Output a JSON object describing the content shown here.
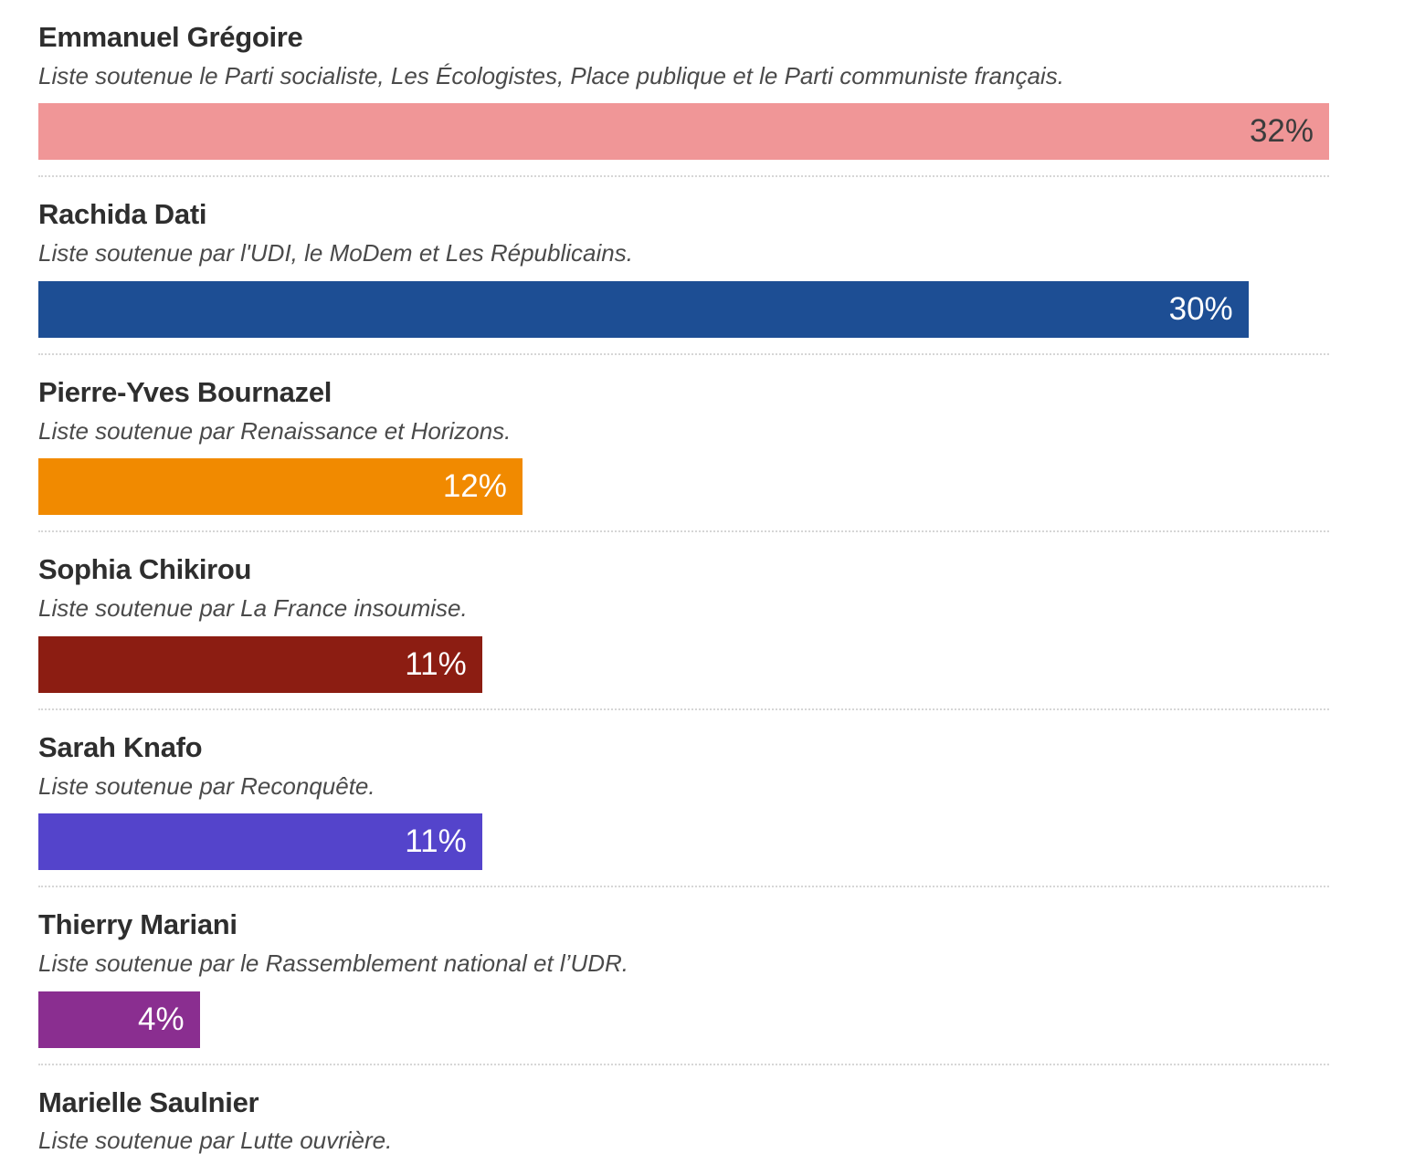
{
  "chart_data": {
    "type": "bar",
    "orientation": "horizontal",
    "unit": "%",
    "xlim": [
      0,
      32
    ],
    "grid": false,
    "legend": false,
    "title": "",
    "categories": [
      "Emmanuel Grégoire",
      "Rachida Dati",
      "Pierre-Yves Bournazel",
      "Sophia Chikirou",
      "Sarah Knafo",
      "Thierry Mariani",
      "Marielle Saulnier"
    ],
    "values": [
      32,
      30,
      12,
      11,
      11,
      4,
      null
    ],
    "bar_labels": [
      "32%",
      "30%",
      "12%",
      "11%",
      "11%",
      "4%",
      null
    ],
    "bar_colors": [
      "#f09697",
      "#1d4e94",
      "#f18a00",
      "#8c1d12",
      "#5444cb",
      "#8a2e90",
      null
    ],
    "annotations": [
      "Liste soutenue le Parti socialiste, Les Écologistes, Place publique et le Parti communiste français.",
      "Liste soutenue par l'UDI, le MoDem et Les Républicains.",
      "Liste soutenue par Renaissance et Horizons.",
      "Liste soutenue par La France insoumise.",
      "Liste soutenue par Reconquête.",
      "Liste soutenue par le Rassemblement national et l’UDR.",
      "Liste soutenue par Lutte ouvrière."
    ],
    "layout": "each candidate: bold name, italic support line, colored horizontal bar with right-aligned percentage label, dotted separator"
  },
  "candidates": [
    {
      "name": "Emmanuel Grégoire",
      "support": "Liste soutenue le Parti socialiste, Les Écologistes, Place publique et le Parti communiste français.",
      "value": 32,
      "label": "32%",
      "color": "#f09697",
      "label_color": "#3c3c3c"
    },
    {
      "name": "Rachida Dati",
      "support": "Liste soutenue par l'UDI, le MoDem et Les Républicains.",
      "value": 30,
      "label": "30%",
      "color": "#1d4e94",
      "label_color": "#ffffff"
    },
    {
      "name": "Pierre-Yves Bournazel",
      "support": "Liste soutenue par Renaissance et Horizons.",
      "value": 12,
      "label": "12%",
      "color": "#f18a00",
      "label_color": "#ffffff"
    },
    {
      "name": "Sophia Chikirou",
      "support": "Liste soutenue par La France insoumise.",
      "value": 11,
      "label": "11%",
      "color": "#8c1d12",
      "label_color": "#ffffff"
    },
    {
      "name": "Sarah Knafo",
      "support": "Liste soutenue par Reconquête.",
      "value": 11,
      "label": "11%",
      "color": "#5444cb",
      "label_color": "#ffffff"
    },
    {
      "name": "Thierry Mariani",
      "support": "Liste soutenue par le Rassemblement national et l’UDR.",
      "value": 4,
      "label": "4%",
      "color": "#8a2e90",
      "label_color": "#ffffff"
    },
    {
      "name": "Marielle Saulnier",
      "support": "Liste soutenue par Lutte ouvrière.",
      "value": null,
      "label": null,
      "color": null,
      "label_color": null
    }
  ],
  "colors": {
    "name_text": "#2e2e2e",
    "support_text": "#4a4a4a",
    "separator": "#d6d6d6",
    "background": "#ffffff"
  }
}
